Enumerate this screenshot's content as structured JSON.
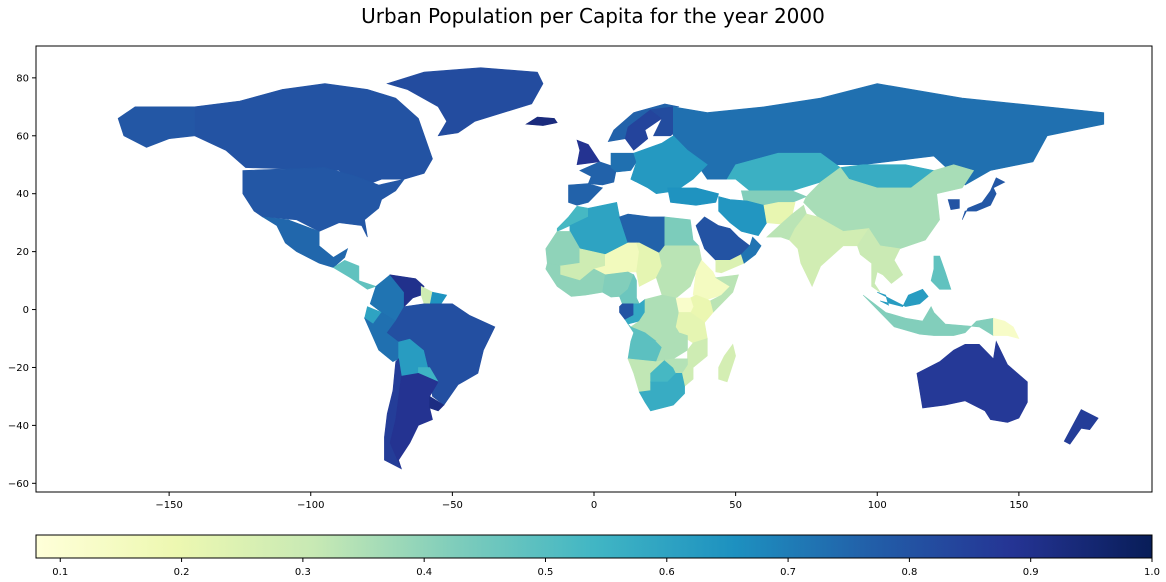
{
  "title": "Urban Population per Capita for the year 2000",
  "chart_data": {
    "type": "heatmap",
    "subtype": "choropleth-world-map",
    "title": "Urban Population per Capita for the year 2000",
    "xlabel": "",
    "ylabel": "",
    "xlim": [
      -197,
      197
    ],
    "ylim": [
      -63,
      91
    ],
    "xticks": [
      -150,
      -100,
      -50,
      0,
      50,
      100,
      150
    ],
    "yticks": [
      -60,
      -40,
      -20,
      0,
      20,
      40,
      60,
      80
    ],
    "colormap": "YlGnBu",
    "colorbar": {
      "min": 0.08,
      "max": 1.0,
      "ticks": [
        0.1,
        0.2,
        0.3,
        0.4,
        0.5,
        0.6,
        0.7,
        0.8,
        0.9,
        1.0
      ],
      "orientation": "horizontal",
      "placement": "bottom"
    },
    "color_stops": [
      "#ffffd9",
      "#edf8b1",
      "#c7e9b4",
      "#7fcdbb",
      "#41b6c4",
      "#1d91c0",
      "#225ea8",
      "#253494",
      "#081d58"
    ],
    "regions": [
      {
        "name": "Canada",
        "value": 0.8
      },
      {
        "name": "United States",
        "value": 0.79
      },
      {
        "name": "Alaska",
        "value": 0.79
      },
      {
        "name": "Greenland",
        "value": 0.82
      },
      {
        "name": "Mexico",
        "value": 0.75
      },
      {
        "name": "Central America",
        "value": 0.48
      },
      {
        "name": "Colombia",
        "value": 0.72
      },
      {
        "name": "Venezuela",
        "value": 0.9
      },
      {
        "name": "Guyana",
        "value": 0.29
      },
      {
        "name": "Suriname",
        "value": 0.65
      },
      {
        "name": "Ecuador",
        "value": 0.6
      },
      {
        "name": "Peru",
        "value": 0.73
      },
      {
        "name": "Bolivia",
        "value": 0.62
      },
      {
        "name": "Brazil",
        "value": 0.81
      },
      {
        "name": "Paraguay",
        "value": 0.55
      },
      {
        "name": "Chile",
        "value": 0.86
      },
      {
        "name": "Argentina",
        "value": 0.89
      },
      {
        "name": "Uruguay",
        "value": 0.92
      },
      {
        "name": "Iceland",
        "value": 0.93
      },
      {
        "name": "Norway",
        "value": 0.76
      },
      {
        "name": "Sweden",
        "value": 0.84
      },
      {
        "name": "Finland",
        "value": 0.82
      },
      {
        "name": "Russia",
        "value": 0.73
      },
      {
        "name": "United Kingdom",
        "value": 0.89
      },
      {
        "name": "France",
        "value": 0.76
      },
      {
        "name": "Spain",
        "value": 0.76
      },
      {
        "name": "Germany",
        "value": 0.73
      },
      {
        "name": "Eastern Europe",
        "value": 0.63
      },
      {
        "name": "Turkey",
        "value": 0.65
      },
      {
        "name": "Kazakhstan",
        "value": 0.56
      },
      {
        "name": "Central Asia",
        "value": 0.42
      },
      {
        "name": "Mongolia",
        "value": 0.57
      },
      {
        "name": "China",
        "value": 0.36
      },
      {
        "name": "Japan",
        "value": 0.79
      },
      {
        "name": "Korea",
        "value": 0.8
      },
      {
        "name": "Iran",
        "value": 0.64
      },
      {
        "name": "Afghanistan",
        "value": 0.21
      },
      {
        "name": "Pakistan",
        "value": 0.33
      },
      {
        "name": "India",
        "value": 0.28
      },
      {
        "name": "Southeast Asia",
        "value": 0.3
      },
      {
        "name": "Malaysia",
        "value": 0.62
      },
      {
        "name": "Indonesia",
        "value": 0.42
      },
      {
        "name": "Philippines",
        "value": 0.48
      },
      {
        "name": "Papua New Guinea",
        "value": 0.13
      },
      {
        "name": "Saudi Arabia",
        "value": 0.8
      },
      {
        "name": "Yemen",
        "value": 0.25
      },
      {
        "name": "Oman",
        "value": 0.72
      },
      {
        "name": "Morocco",
        "value": 0.53
      },
      {
        "name": "Algeria",
        "value": 0.6
      },
      {
        "name": "Libya",
        "value": 0.76
      },
      {
        "name": "Egypt",
        "value": 0.43
      },
      {
        "name": "Mauritania",
        "value": 0.4
      },
      {
        "name": "Mali",
        "value": 0.29
      },
      {
        "name": "Niger",
        "value": 0.16
      },
      {
        "name": "Chad",
        "value": 0.22
      },
      {
        "name": "Sudan",
        "value": 0.33
      },
      {
        "name": "Ethiopia",
        "value": 0.15
      },
      {
        "name": "Somalia",
        "value": 0.33
      },
      {
        "name": "West Africa",
        "value": 0.4
      },
      {
        "name": "Nigeria",
        "value": 0.42
      },
      {
        "name": "Cameroon",
        "value": 0.46
      },
      {
        "name": "Gabon",
        "value": 0.8
      },
      {
        "name": "Congo",
        "value": 0.58
      },
      {
        "name": "DR Congo",
        "value": 0.35
      },
      {
        "name": "Kenya",
        "value": 0.2
      },
      {
        "name": "Uganda",
        "value": 0.12
      },
      {
        "name": "Tanzania",
        "value": 0.22
      },
      {
        "name": "Angola",
        "value": 0.49
      },
      {
        "name": "Zambia",
        "value": 0.35
      },
      {
        "name": "Mozambique",
        "value": 0.29
      },
      {
        "name": "Madagascar",
        "value": 0.27
      },
      {
        "name": "Namibia",
        "value": 0.32
      },
      {
        "name": "Botswana",
        "value": 0.53
      },
      {
        "name": "Zimbabwe",
        "value": 0.34
      },
      {
        "name": "South Africa",
        "value": 0.57
      },
      {
        "name": "Australia",
        "value": 0.87
      },
      {
        "name": "New Zealand",
        "value": 0.86
      }
    ]
  }
}
